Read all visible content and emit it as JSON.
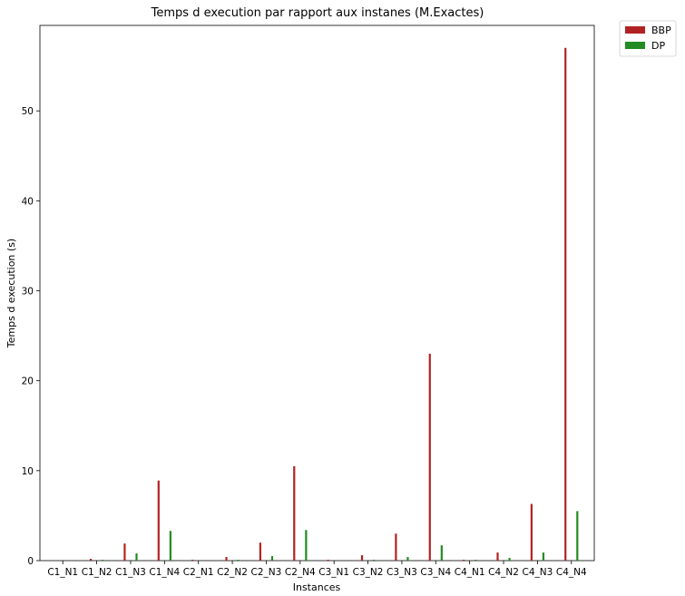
{
  "chart_data": {
    "type": "bar",
    "title": "Temps d execution par rapport aux instanes (M.Exactes)",
    "xlabel": "Instances",
    "ylabel": "Temps d execution (s)",
    "ylim": [
      0,
      59.5
    ],
    "yticks": [
      0,
      10,
      20,
      30,
      40,
      50
    ],
    "grid": false,
    "legend_position": "outside-top-right",
    "categories": [
      "C1_N1",
      "C1_N2",
      "C1_N3",
      "C1_N4",
      "C2_N1",
      "C2_N2",
      "C2_N3",
      "C2_N4",
      "C3_N1",
      "C3_N2",
      "C3_N3",
      "C3_N4",
      "C4_N1",
      "C4_N2",
      "C4_N3",
      "C4_N4"
    ],
    "series": [
      {
        "name": "BBP",
        "color": "#b22222",
        "values": [
          0.0,
          0.2,
          1.9,
          8.9,
          0.1,
          0.4,
          2.0,
          10.5,
          0.1,
          0.6,
          3.0,
          23.0,
          0.1,
          0.9,
          6.3,
          57.0
        ]
      },
      {
        "name": "DP",
        "color": "#228b22",
        "values": [
          0.0,
          0.1,
          0.8,
          3.3,
          0.0,
          0.1,
          0.5,
          3.4,
          0.0,
          0.1,
          0.4,
          1.7,
          0.1,
          0.3,
          0.9,
          5.5
        ]
      }
    ]
  }
}
